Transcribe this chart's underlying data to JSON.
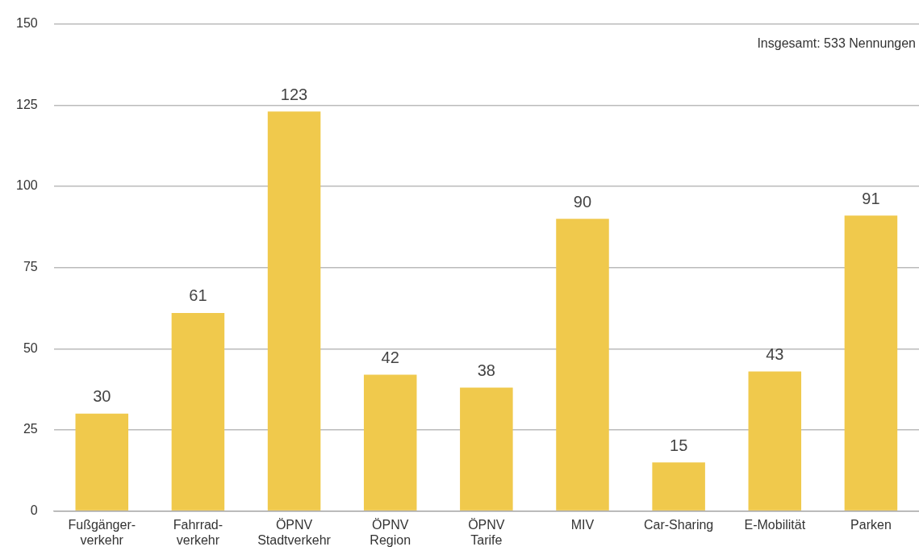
{
  "chart_data": {
    "type": "bar",
    "categories": [
      "Fußgänger-\nverkehr",
      "Fahrrad-\nverkehr",
      "ÖPNV\nStadtverkehr",
      "ÖPNV\nRegion",
      "ÖPNV\nTarife",
      "MIV",
      "Car-Sharing",
      "E-Mobilität",
      "Parken"
    ],
    "values": [
      30,
      61,
      123,
      42,
      38,
      90,
      15,
      43,
      91
    ],
    "color": "#f0c94c",
    "ylim": [
      0,
      150
    ],
    "yticks": [
      0,
      25,
      50,
      75,
      100,
      125,
      150
    ],
    "grid": "y",
    "data_labels": true,
    "legend": false,
    "annotations": [
      "Insgesamt: 533 Nennungen"
    ]
  }
}
